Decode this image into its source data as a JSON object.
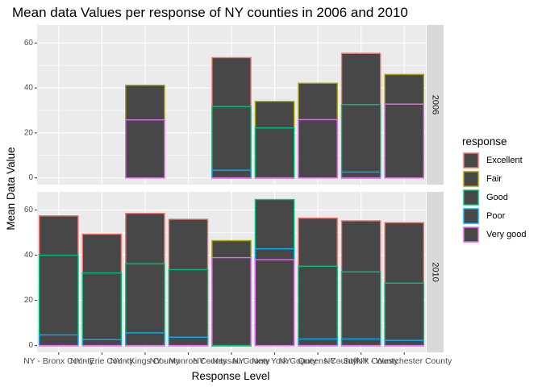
{
  "chart_data": {
    "type": "bar",
    "stacked": false,
    "title": "Mean data Values per response of NY counties in 2006 and 2010",
    "xlabel": "Response Level",
    "ylabel": "Mean Data Value",
    "ylim": [
      -3,
      68
    ],
    "yticks": [
      0,
      20,
      40,
      60
    ],
    "grid": true,
    "legend_position": "right",
    "legend_title": "response",
    "legend": [
      {
        "name": "Excellent",
        "color": "#F8766D"
      },
      {
        "name": "Fair",
        "color": "#A3A500"
      },
      {
        "name": "Good",
        "color": "#00BF7D"
      },
      {
        "name": "Poor",
        "color": "#00B0F6"
      },
      {
        "name": "Very good",
        "color": "#E76BF3"
      }
    ],
    "bar_fill": "#474747",
    "categories": [
      "NY - Bronx County",
      "NY - Erie County",
      "NY - Kings County",
      "NY - Monroe County",
      "NY - Nassau County",
      "NY - New York County",
      "NY - Queens County",
      "NY - Suffolk County",
      "NY - Westchester County"
    ],
    "tick_labels": [
      "NY - Bronx County",
      "NY - Erie County",
      "NY - Kings County",
      "NY - Monroe County",
      "NY - Nassau County",
      "NY - New York County",
      "NY - Queens County",
      "NY - Suffolk County",
      "NY - Westchester County"
    ],
    "panels": [
      {
        "label": "2006",
        "series": [
          {
            "name": "Excellent",
            "values": [
              null,
              null,
              null,
              null,
              53.5,
              null,
              null,
              55.4,
              null
            ]
          },
          {
            "name": "Fair",
            "values": [
              null,
              null,
              41.2,
              null,
              null,
              34.0,
              42.1,
              null,
              46.0
            ]
          },
          {
            "name": "Good",
            "values": [
              null,
              null,
              null,
              null,
              31.7,
              22.2,
              null,
              32.6,
              null
            ]
          },
          {
            "name": "Poor",
            "values": [
              null,
              null,
              null,
              null,
              3.4,
              null,
              null,
              2.6,
              null
            ]
          },
          {
            "name": "Very good",
            "values": [
              null,
              null,
              25.8,
              null,
              0,
              0,
              25.9,
              0,
              32.8
            ]
          }
        ]
      },
      {
        "label": "2010",
        "series": [
          {
            "name": "Excellent",
            "values": [
              57.4,
              49.3,
              58.5,
              55.9,
              null,
              null,
              56.4,
              55.2,
              54.4
            ]
          },
          {
            "name": "Fair",
            "values": [
              null,
              null,
              null,
              null,
              46.4,
              null,
              null,
              null,
              null
            ]
          },
          {
            "name": "Good",
            "values": [
              40.0,
              32.1,
              36.2,
              33.6,
              0,
              64.6,
              35.1,
              32.6,
              27.6
            ]
          },
          {
            "name": "Poor",
            "values": [
              4.7,
              2.6,
              5.6,
              3.7,
              null,
              42.8,
              2.9,
              2.9,
              2.3
            ]
          },
          {
            "name": "Very good",
            "values": [
              0,
              0,
              0,
              0,
              38.9,
              38.0,
              0,
              0,
              0
            ]
          }
        ]
      }
    ]
  }
}
